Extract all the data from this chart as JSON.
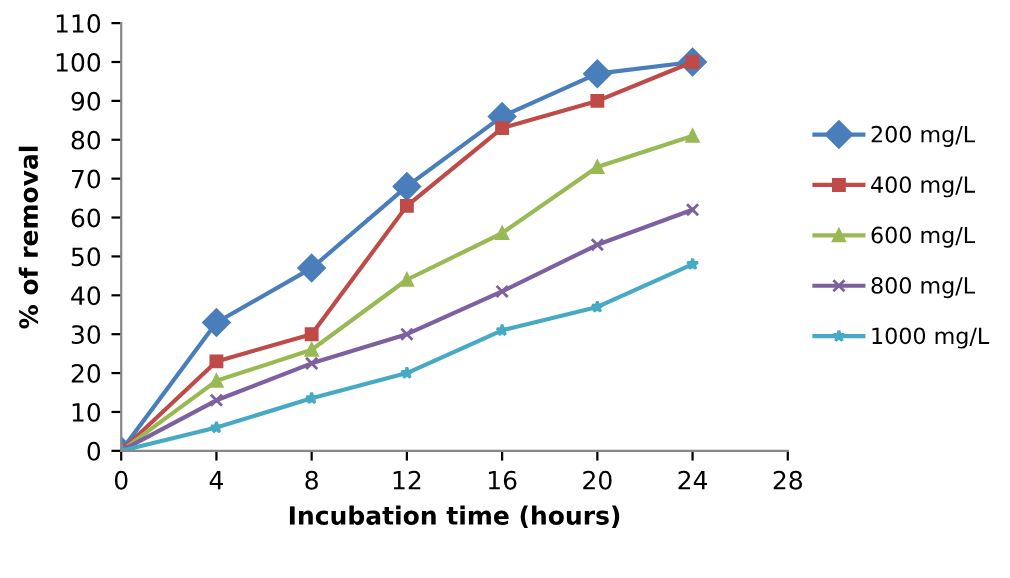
{
  "chart_data": {
    "type": "line",
    "xlabel": "Incubation time (hours)",
    "ylabel": "% of removal",
    "x": [
      0,
      4,
      8,
      12,
      16,
      20,
      24
    ],
    "series": [
      {
        "name": "200 mg/L",
        "color": "#4a7ebb",
        "marker": "diamond",
        "values": [
          0,
          33,
          47,
          68,
          86,
          97,
          100
        ]
      },
      {
        "name": "400 mg/L",
        "color": "#be4b48",
        "marker": "square",
        "values": [
          0,
          23,
          30,
          63,
          83,
          90,
          100
        ]
      },
      {
        "name": "600 mg/L",
        "color": "#98b954",
        "marker": "triangle",
        "values": [
          0,
          18,
          26,
          44,
          56,
          73,
          81
        ]
      },
      {
        "name": "800 mg/L",
        "color": "#7d60a0",
        "marker": "cross",
        "values": [
          0,
          13,
          22.5,
          30,
          41,
          53,
          62
        ]
      },
      {
        "name": "1000 mg/L",
        "color": "#46aac5",
        "marker": "star",
        "values": [
          0,
          6,
          13.5,
          20,
          31,
          37,
          48
        ]
      }
    ],
    "xlim": [
      0,
      28
    ],
    "xticks": [
      0,
      4,
      8,
      12,
      16,
      20,
      24,
      28
    ],
    "ylim": [
      0,
      110
    ],
    "yticks": [
      0,
      10,
      20,
      30,
      40,
      50,
      60,
      70,
      80,
      90,
      100,
      110
    ],
    "grid": false,
    "legend": "right",
    "line_style": "solid"
  }
}
